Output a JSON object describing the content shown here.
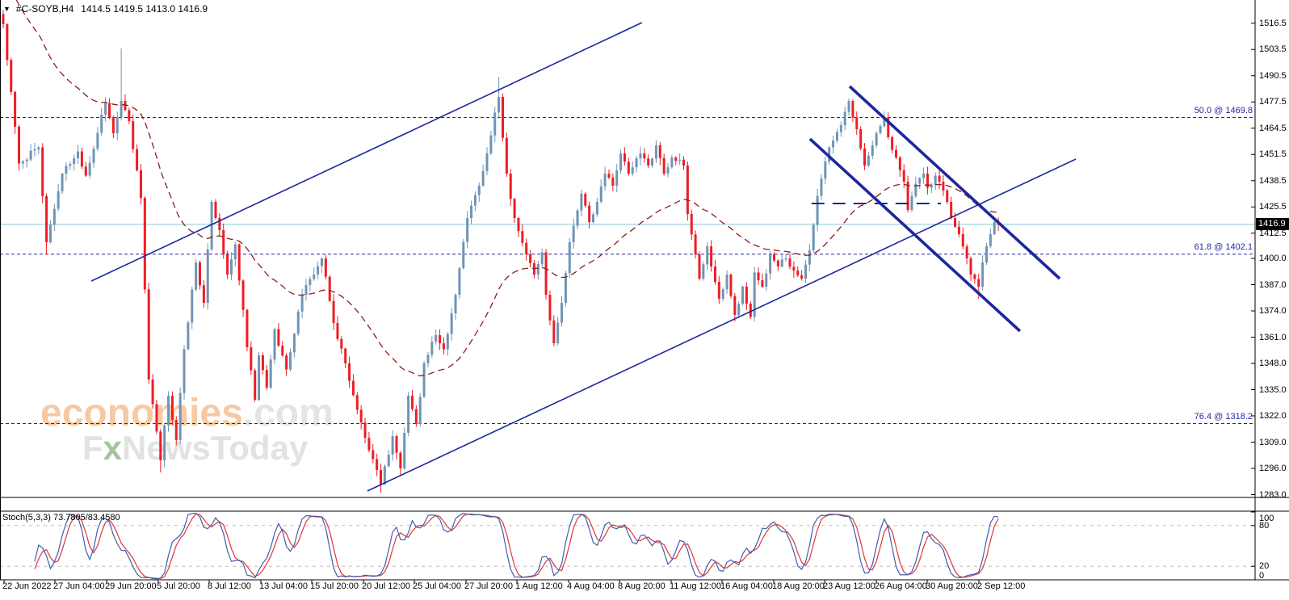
{
  "window": {
    "dropdown_icon": "▼",
    "symbol": "#C-SOYB,H4",
    "ohlc_text": "1414.5 1419.5 1413.0 1416.9"
  },
  "price_axis": {
    "tick_labels": [
      "1516.5",
      "1503.5",
      "1490.5",
      "1477.5",
      "1464.5",
      "1451.5",
      "1438.5",
      "1425.5",
      "1412.5",
      "1400.0",
      "1387.0",
      "1374.0",
      "1361.0",
      "1348.0",
      "1335.0",
      "1322.0",
      "1309.0",
      "1296.0",
      "1283.0"
    ],
    "tick_values": [
      1516.5,
      1503.5,
      1490.5,
      1477.5,
      1464.5,
      1451.5,
      1438.5,
      1425.5,
      1412.5,
      1400.0,
      1387.0,
      1374.0,
      1361.0,
      1348.0,
      1335.0,
      1322.0,
      1309.0,
      1296.0,
      1283.0
    ],
    "current_label": "1416.9",
    "current_price": 1416.9
  },
  "time_axis": {
    "labels": [
      "22 Jun 2022",
      "27 Jun 04:00",
      "29 Jun 20:00",
      "5 Jul 20:00",
      "8 Jul 12:00",
      "13 Jul 04:00",
      "15 Jul 20:00",
      "20 Jul 12:00",
      "25 Jul 04:00",
      "27 Jul 20:00",
      "1 Aug 12:00",
      "4 Aug 04:00",
      "8 Aug 20:00",
      "11 Aug 12:00",
      "16 Aug 04:00",
      "18 Aug 20:00",
      "23 Aug 12:00",
      "26 Aug 04:00",
      "30 Aug 20:00",
      "2 Sep 12:00"
    ],
    "xs": [
      5,
      68,
      132,
      196,
      259,
      323,
      386,
      450,
      513,
      577,
      640,
      704,
      767,
      831,
      894,
      958,
      1021,
      1085,
      1148,
      1212
    ]
  },
  "fib": {
    "levels": [
      {
        "label": "50.0 @ 1469.8",
        "price": 1469.8
      },
      {
        "label": "61.8 @ 1402.1",
        "price": 1402.1
      },
      {
        "label": "76.4 @ 1318.2",
        "price": 1318.2
      }
    ]
  },
  "watermark": {
    "brand": "economies",
    "brand_suffix": ".com",
    "tagline_pre": "F",
    "tagline_x": "x",
    "tagline_post": "NewsToday"
  },
  "stoch_panel": {
    "name": "Stoch(5,3,3)",
    "value": "73.7805/83.4580",
    "axis_labels": [
      "100",
      "80",
      "20",
      "0"
    ],
    "axis_values": [
      100,
      80,
      20,
      0
    ],
    "level_lines": [
      80,
      20
    ]
  },
  "colors": {
    "up": "#6f94b6",
    "down": "#ee1d25",
    "trend": "#1d279e",
    "fib_line": "#23239b",
    "fib_text": "#2626a8",
    "ma": "#8b1d1d",
    "current_line": "#b2dbe5",
    "stoch_main": "#3f5fae",
    "stoch_signal": "#e03438",
    "stoch_level": "#c9b9b9",
    "badge_bg": "#000000",
    "badge_text": "#ffffff",
    "frame": "#000000"
  },
  "chart_data": {
    "type": "candlestick",
    "symbol": "#C-SOYB",
    "timeframe": "H4",
    "bars": 254,
    "price_range": [
      1283.0,
      1516.5
    ],
    "price_keypoints": [
      [
        0,
        1516
      ],
      [
        4,
        1447
      ],
      [
        9,
        1455
      ],
      [
        11,
        1408
      ],
      [
        15,
        1442
      ],
      [
        19,
        1453
      ],
      [
        21,
        1441
      ],
      [
        26,
        1477
      ],
      [
        28,
        1462
      ],
      [
        30,
        1478
      ],
      [
        32,
        1468
      ],
      [
        35,
        1430
      ],
      [
        37,
        1340
      ],
      [
        40,
        1300
      ],
      [
        42,
        1332
      ],
      [
        44,
        1310
      ],
      [
        46,
        1355
      ],
      [
        49,
        1398
      ],
      [
        51,
        1378
      ],
      [
        53,
        1428
      ],
      [
        55,
        1414
      ],
      [
        57,
        1392
      ],
      [
        59,
        1407
      ],
      [
        62,
        1356
      ],
      [
        64,
        1330
      ],
      [
        65,
        1352
      ],
      [
        67,
        1336
      ],
      [
        69,
        1365
      ],
      [
        72,
        1345
      ],
      [
        76,
        1382
      ],
      [
        79,
        1392
      ],
      [
        81,
        1400
      ],
      [
        84,
        1368
      ],
      [
        87,
        1348
      ],
      [
        90,
        1325
      ],
      [
        93,
        1305
      ],
      [
        96,
        1288
      ],
      [
        99,
        1312
      ],
      [
        101,
        1296
      ],
      [
        103,
        1332
      ],
      [
        105,
        1318
      ],
      [
        107,
        1348
      ],
      [
        110,
        1362
      ],
      [
        112,
        1355
      ],
      [
        115,
        1382
      ],
      [
        118,
        1420
      ],
      [
        121,
        1436
      ],
      [
        123,
        1452
      ],
      [
        126,
        1480
      ],
      [
        128,
        1442
      ],
      [
        130,
        1420
      ],
      [
        133,
        1402
      ],
      [
        135,
        1392
      ],
      [
        137,
        1403
      ],
      [
        138,
        1382
      ],
      [
        140,
        1358
      ],
      [
        142,
        1378
      ],
      [
        144,
        1408
      ],
      [
        147,
        1432
      ],
      [
        149,
        1418
      ],
      [
        151,
        1428
      ],
      [
        153,
        1442
      ],
      [
        155,
        1436
      ],
      [
        157,
        1452
      ],
      [
        159,
        1442
      ],
      [
        162,
        1452
      ],
      [
        164,
        1446
      ],
      [
        166,
        1456
      ],
      [
        168,
        1442
      ],
      [
        170,
        1450
      ],
      [
        173,
        1446
      ],
      [
        174,
        1422
      ],
      [
        176,
        1402
      ],
      [
        177,
        1390
      ],
      [
        179,
        1406
      ],
      [
        180,
        1396
      ],
      [
        182,
        1380
      ],
      [
        184,
        1392
      ],
      [
        186,
        1372
      ],
      [
        188,
        1386
      ],
      [
        190,
        1371
      ],
      [
        191,
        1393
      ],
      [
        193,
        1386
      ],
      [
        195,
        1402
      ],
      [
        197,
        1396
      ],
      [
        199,
        1400
      ],
      [
        201,
        1394
      ],
      [
        203,
        1390
      ],
      [
        205,
        1404
      ],
      [
        207,
        1431
      ],
      [
        209,
        1448
      ],
      [
        210,
        1455
      ],
      [
        213,
        1466
      ],
      [
        215,
        1478
      ],
      [
        217,
        1464
      ],
      [
        219,
        1446
      ],
      [
        221,
        1456
      ],
      [
        222,
        1462
      ],
      [
        224,
        1470
      ],
      [
        225,
        1460
      ],
      [
        227,
        1450
      ],
      [
        229,
        1438
      ],
      [
        230,
        1424
      ],
      [
        232,
        1437
      ],
      [
        234,
        1442
      ],
      [
        235,
        1435
      ],
      [
        237,
        1441
      ],
      [
        238,
        1438
      ],
      [
        240,
        1428
      ],
      [
        241,
        1420
      ],
      [
        243,
        1412
      ],
      [
        245,
        1400
      ],
      [
        246,
        1392
      ],
      [
        248,
        1386
      ],
      [
        249,
        1398
      ],
      [
        251,
        1412
      ],
      [
        252,
        1418
      ],
      [
        253,
        1416.9
      ]
    ],
    "wick_overrides": [
      {
        "i": 30,
        "high": 1504
      },
      {
        "i": 126,
        "high": 1490
      },
      {
        "i": 96,
        "low": 1284
      },
      {
        "i": 97,
        "low": 1290
      },
      {
        "i": 40,
        "low": 1294
      },
      {
        "i": 248,
        "low": 1380
      },
      {
        "i": 11,
        "low": 1402
      }
    ],
    "moving_average": {
      "style": "dashed",
      "period": 45
    },
    "annotations": {
      "ascending_channel": [
        {
          "i1": 22.4,
          "p1": 1388.8,
          "i2": 162.4,
          "p2": 1516.8
        },
        {
          "i1": 92.6,
          "p1": 1284.8,
          "i2": 272.7,
          "p2": 1449.2
        }
      ],
      "descending_channel": [
        {
          "i1": 215.2,
          "p1": 1485.2,
          "i2": 268.6,
          "p2": 1390.0
        },
        {
          "i1": 205.1,
          "p1": 1459.2,
          "i2": 258.5,
          "p2": 1364.0
        }
      ],
      "horizontal_dashed": {
        "price": 1427.2,
        "i1": 205.5,
        "i2": 238.4
      }
    },
    "stochastic": {
      "k_period": 5,
      "slowing": 3,
      "d_period": 3,
      "last_values": [
        73.7805,
        83.458
      ],
      "scale": [
        0,
        100
      ]
    }
  }
}
